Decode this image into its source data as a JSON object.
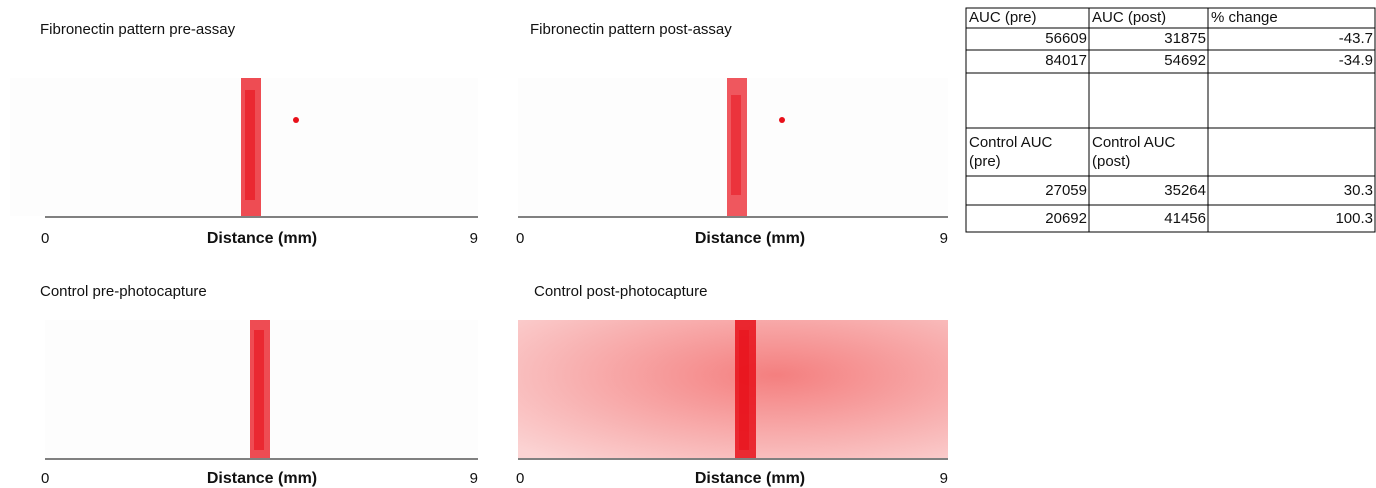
{
  "panels": [
    {
      "title": "Fibronectin pattern pre-assay",
      "axis_start": "0",
      "axis_label": "Distance (mm)",
      "axis_end": "9"
    },
    {
      "title": "Fibronectin pattern post-assay",
      "axis_start": "0",
      "axis_label": "Distance (mm)",
      "axis_end": "9"
    },
    {
      "title": "Control pre-photocapture",
      "axis_start": "0",
      "axis_label": "Distance (mm)",
      "axis_end": "9"
    },
    {
      "title": "Control post-photocapture",
      "axis_start": "0",
      "axis_label": "Distance (mm)",
      "axis_end": "9"
    }
  ],
  "table": {
    "header": [
      "AUC (pre)",
      "AUC (post)",
      "% change"
    ],
    "rows": [
      [
        56609,
        31875,
        -43.7
      ],
      [
        84017,
        54692,
        -34.9
      ]
    ],
    "control_header": [
      [
        "Control AUC",
        "(pre)"
      ],
      [
        "Control AUC",
        "(post)"
      ]
    ],
    "control_rows": [
      [
        27059,
        35264,
        30.3
      ],
      [
        20692,
        41456,
        100.3
      ]
    ]
  }
}
